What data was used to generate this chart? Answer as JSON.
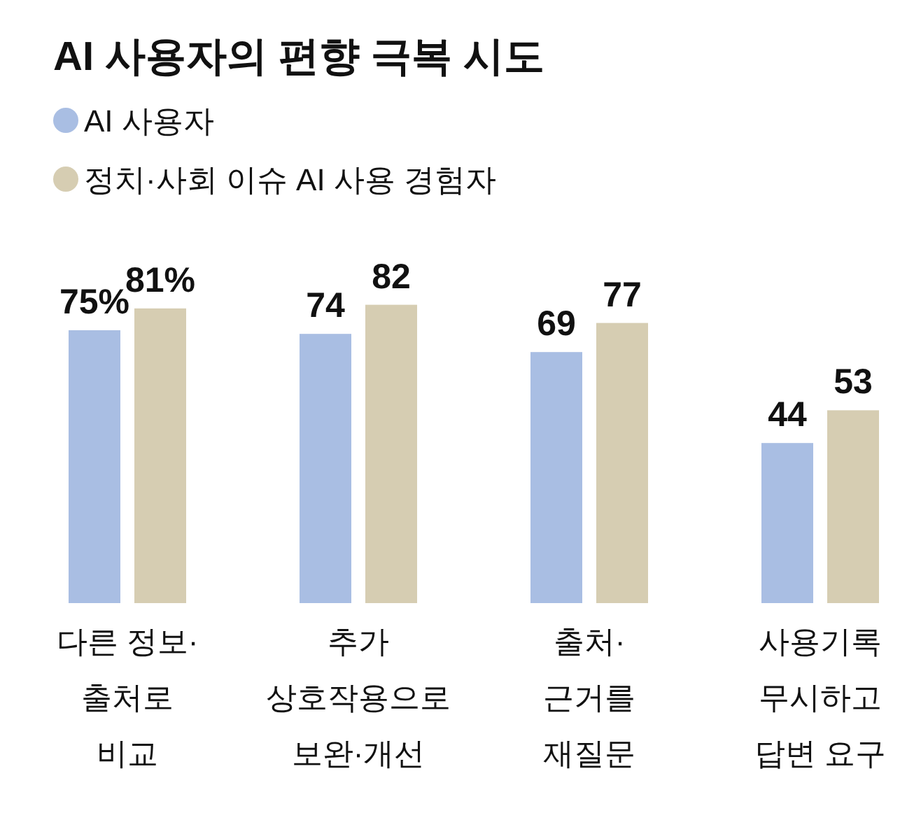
{
  "chart_data": {
    "type": "bar",
    "title": "AI 사용자의 편향 극복 시도",
    "categories": [
      "다른 정보·\n출처로\n비교",
      "추가\n상호작용으로\n보완·개선",
      "출처·\n근거를\n재질문",
      "사용기록\n무시하고\n답변 요구"
    ],
    "series": [
      {
        "name": "AI 사용자",
        "color": "#a9bee3",
        "values": [
          75,
          74,
          69,
          44
        ],
        "value_labels": [
          "75%",
          "74",
          "69",
          "44"
        ]
      },
      {
        "name": "정치·사회 이슈 AI 사용 경험자",
        "color": "#d6cdb2",
        "values": [
          81,
          82,
          77,
          53
        ],
        "value_labels": [
          "81%",
          "82",
          "77",
          "53"
        ]
      }
    ],
    "legend": "top left"
  }
}
